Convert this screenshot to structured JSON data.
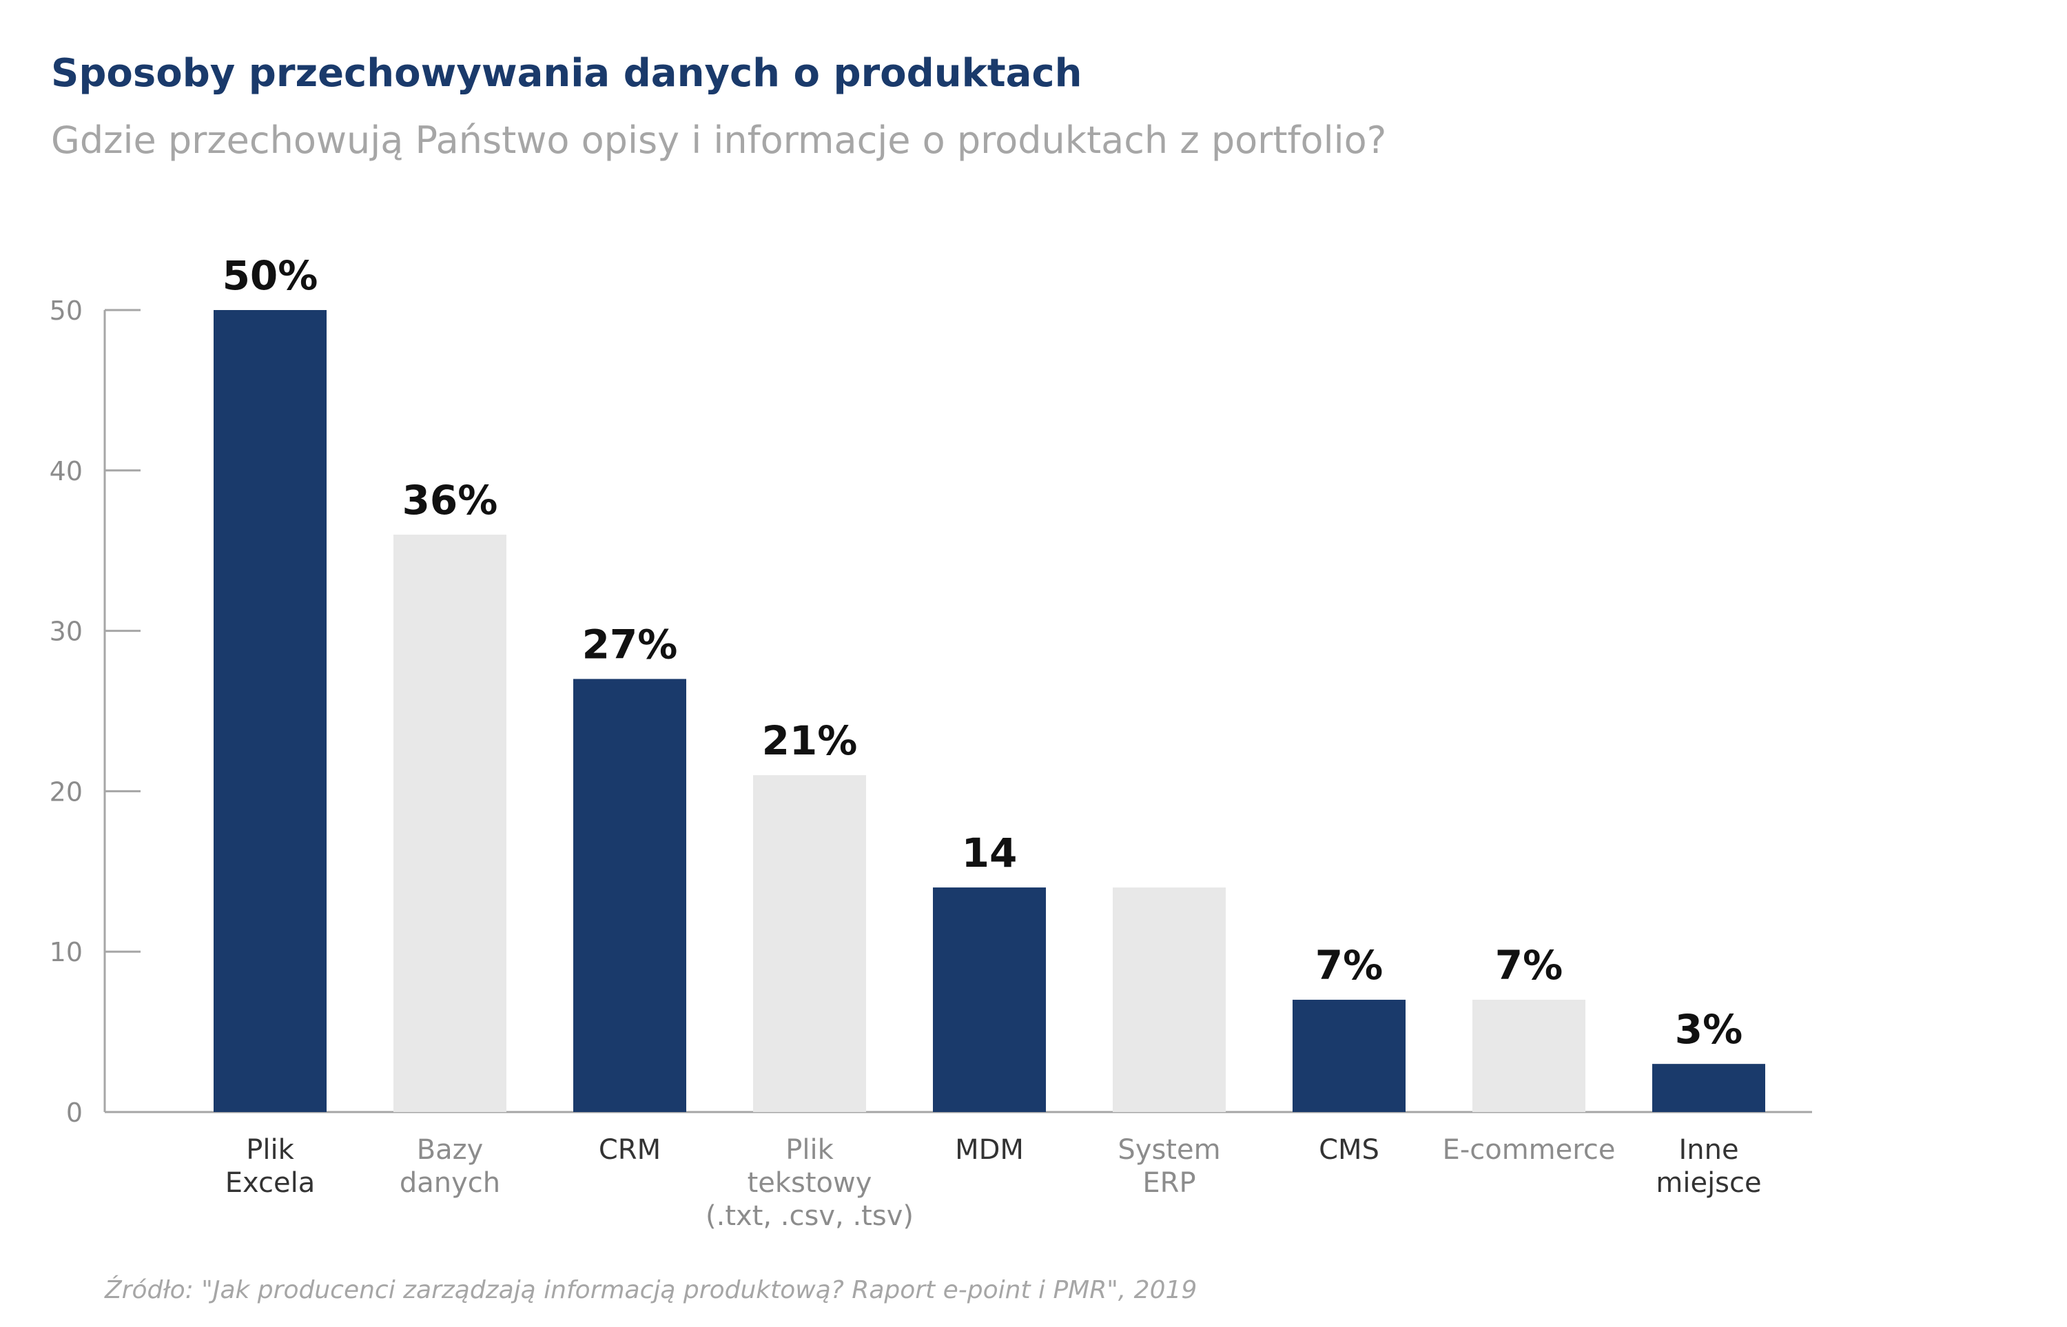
{
  "title": "Sposoby przechowywania danych o produktach",
  "subtitle": "Gdzie przechowują Państwo opisy i informacje o produktach z portfolio?",
  "source": "Źródło: \"Jak producenci zarządzają informacją produktową? Raport e-point i PMR\", 2019",
  "colors": {
    "dark": "#1a3a6b",
    "light": "#e8e8e8",
    "title": "#1a3a6b",
    "subtitle": "#a6a6a6",
    "axis": "#a6a6a6",
    "label_dark": "#333333",
    "label_light": "#8c8c8c",
    "value_label": "#111111"
  },
  "chart_data": {
    "type": "bar",
    "categories": [
      [
        "Plik",
        "Excela"
      ],
      [
        "Bazy",
        "danych"
      ],
      [
        "CRM"
      ],
      [
        "Plik",
        "tekstowy",
        "(.txt, .csv, .tsv)"
      ],
      [
        "MDM"
      ],
      [
        "System",
        "ERP"
      ],
      [
        "CMS"
      ],
      [
        "E-commerce"
      ],
      [
        "Inne",
        "miejsce"
      ]
    ],
    "values": [
      50,
      36,
      27,
      21,
      14,
      14,
      7,
      7,
      3
    ],
    "value_labels": [
      "50%",
      "36%",
      "27%",
      "21%",
      "14",
      "",
      "7%",
      "7%",
      "3%"
    ],
    "bar_colors": [
      "dark",
      "light",
      "dark",
      "light",
      "dark",
      "light",
      "dark",
      "light",
      "dark"
    ],
    "yticks": [
      "0",
      "10",
      "20",
      "30",
      "40",
      "50"
    ],
    "ylim": [
      0,
      50
    ],
    "grid": false,
    "legend": "none"
  }
}
